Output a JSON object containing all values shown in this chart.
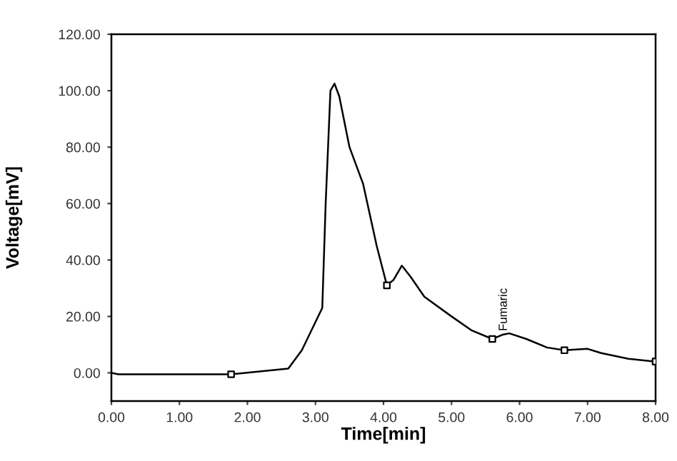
{
  "chart_data": {
    "type": "line",
    "xlabel": "Time[min]",
    "ylabel": "Voltage[mV]",
    "xlim": [
      0,
      8
    ],
    "ylim": [
      -10,
      120
    ],
    "xticks": [
      {
        "value": 0,
        "label": "0.00"
      },
      {
        "value": 1,
        "label": "1.00"
      },
      {
        "value": 2,
        "label": "2.00"
      },
      {
        "value": 3,
        "label": "3.00"
      },
      {
        "value": 4,
        "label": "4.00"
      },
      {
        "value": 5,
        "label": "5.00"
      },
      {
        "value": 6,
        "label": "6.00"
      },
      {
        "value": 7,
        "label": "7.00"
      },
      {
        "value": 8,
        "label": "8.00"
      }
    ],
    "yticks": [
      {
        "value": 0,
        "label": "0.00"
      },
      {
        "value": 20,
        "label": "20.00"
      },
      {
        "value": 40,
        "label": "40.00"
      },
      {
        "value": 60,
        "label": "60.00"
      },
      {
        "value": 80,
        "label": "80.00"
      },
      {
        "value": 100,
        "label": "100.00"
      },
      {
        "value": 120,
        "label": "120.00"
      }
    ],
    "grid": false,
    "series": [
      {
        "color": "#000000",
        "marker": "none",
        "x": [
          0,
          0.1,
          1.76,
          2.6,
          2.8,
          3.0,
          3.1,
          3.15,
          3.22,
          3.28,
          3.35,
          3.5,
          3.7,
          3.9,
          4.05,
          4.15,
          4.27,
          4.4,
          4.6,
          5.0,
          5.3,
          5.6,
          5.75,
          5.85,
          6.1,
          6.4,
          6.66,
          7.0,
          7.2,
          7.6,
          8.0
        ],
        "values": [
          0,
          -0.5,
          -0.5,
          1.5,
          8,
          18,
          23,
          60,
          100,
          102.5,
          98,
          80,
          67,
          45,
          31,
          33,
          38,
          34,
          27,
          20,
          15,
          12,
          13.5,
          14,
          12,
          9,
          8,
          8.5,
          7,
          5,
          4
        ]
      },
      {
        "type": "scatter",
        "color": "#000000",
        "marker": "square",
        "x": [
          1.76,
          4.05,
          5.6,
          6.66,
          8.0
        ],
        "values": [
          -0.5,
          31,
          12,
          8,
          4
        ]
      }
    ],
    "annotations": [
      {
        "text": "Fumaric",
        "x": 5.6,
        "y": 12
      }
    ]
  }
}
